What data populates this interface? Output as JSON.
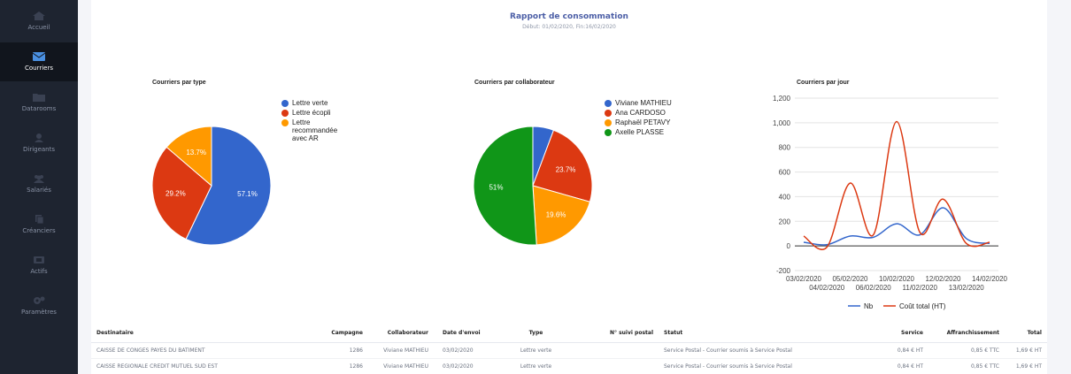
{
  "sidebar": {
    "items": [
      {
        "label": "Accueil",
        "icon": "home-icon"
      },
      {
        "label": "Courriers",
        "icon": "envelope-icon"
      },
      {
        "label": "Datarooms",
        "icon": "folder-icon"
      },
      {
        "label": "Dirigeants",
        "icon": "user-icon"
      },
      {
        "label": "Salariés",
        "icon": "users-icon"
      },
      {
        "label": "Créanciers",
        "icon": "documents-icon"
      },
      {
        "label": "Actifs",
        "icon": "assets-icon"
      },
      {
        "label": "Paramètres",
        "icon": "gears-icon"
      }
    ],
    "active": "Courriers"
  },
  "report": {
    "title": "Rapport de consommation",
    "subtitle": "Début: 01/02/2020, Fin:16/02/2020"
  },
  "chart_data": [
    {
      "type": "pie",
      "title": "Courriers par type",
      "slices": [
        {
          "label": "Lettre verte",
          "value": 57.1,
          "color": "#3366cc"
        },
        {
          "label": "Lettre écopli",
          "value": 29.2,
          "color": "#dc3912"
        },
        {
          "label": "Lettre recommandée avec AR",
          "value": 13.7,
          "color": "#ff9900"
        }
      ],
      "slice_labels": [
        "57.1%",
        "29.2%",
        "13.7%"
      ],
      "legend_position": "right"
    },
    {
      "type": "pie",
      "title": "Courriers par collaborateur",
      "slices": [
        {
          "label": "Viviane MATHIEU",
          "value": 5.7,
          "color": "#3366cc"
        },
        {
          "label": "Ana CARDOSO",
          "value": 23.7,
          "color": "#dc3912"
        },
        {
          "label": "Raphaël PETAVY",
          "value": 19.6,
          "color": "#ff9900"
        },
        {
          "label": "Axelle PLASSE",
          "value": 51,
          "color": "#109618"
        }
      ],
      "slice_labels": [
        "",
        "23.7%",
        "19.6%",
        "51%"
      ],
      "legend_position": "right"
    },
    {
      "type": "line",
      "title": "Courriers par jour",
      "x": [
        "03/02/2020",
        "04/02/2020",
        "05/02/2020",
        "06/02/2020",
        "10/02/2020",
        "11/02/2020",
        "12/02/2020",
        "13/02/2020",
        "14/02/2020"
      ],
      "x_tick_labels_row1": [
        "03/02/2020",
        "05/02/2020",
        "10/02/2020",
        "12/02/2020",
        "14/02/2020"
      ],
      "x_tick_labels_row2": [
        "04/02/2020",
        "06/02/2020",
        "11/02/2020",
        "13/02/2020"
      ],
      "series": [
        {
          "name": "Nb",
          "color": "#3366cc",
          "values": [
            30,
            10,
            80,
            70,
            180,
            90,
            310,
            60,
            20
          ]
        },
        {
          "name": "Coût total (HT)",
          "color": "#dc3912",
          "values": [
            80,
            -10,
            510,
            90,
            1010,
            110,
            380,
            20,
            30
          ]
        }
      ],
      "y_ticks": [
        "1,200",
        "1,000",
        "800",
        "600",
        "400",
        "200",
        "0",
        "-200"
      ],
      "ylim": [
        -200,
        1200
      ],
      "grid": true,
      "legend_position": "bottom"
    }
  ],
  "table": {
    "headers": [
      "Destinataire",
      "Campagne",
      "Collaborateur",
      "Date d'envoi",
      "Type",
      "N° suivi postal",
      "Statut",
      "Service",
      "Affranchissement",
      "Total"
    ],
    "rows": [
      [
        "CAISSE DE CONGÉS PAYÉS DU BATIMENT",
        "1286",
        "Viviane MATHIEU",
        "03/02/2020",
        "Lettre verte",
        "",
        "Service Postal - Courrier soumis à Service Postal",
        "0,84 € HT",
        "0,85 € TTC",
        "1,69 € HT"
      ],
      [
        "CAISSE REGIONALE CREDIT MUTUEL SUD EST",
        "1286",
        "Viviane MATHIEU",
        "03/02/2020",
        "Lettre verte",
        "",
        "Service Postal - Courrier soumis à Service Postal",
        "0,84 € HT",
        "0,85 € TTC",
        "1,69 € HT"
      ]
    ]
  }
}
